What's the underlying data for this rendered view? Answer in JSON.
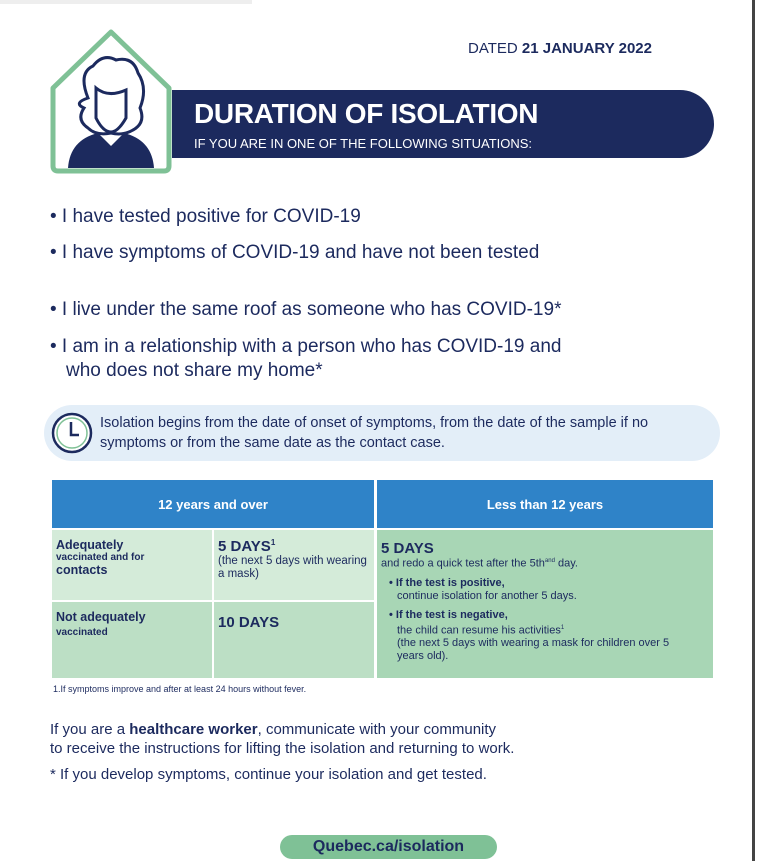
{
  "header": {
    "dated_prefix": "DATED",
    "dated_value": "21 JANUARY 2022",
    "title": "DURATION OF ISOLATION",
    "subtitle": "IF YOU ARE IN ONE OF THE FOLLOWING SITUATIONS:"
  },
  "bullets": [
    "• I have tested positive for COVID-19",
    "• I have symptoms of COVID-19 and have not been tested",
    "• I live under the same roof as someone who has COVID-19*",
    "• I am in a relationship with a person who has COVID-19 and",
    "who does not share my home*"
  ],
  "note": "Isolation begins from the date of onset of symptoms, from the date of the sample if no symptoms or from the same date as the contact case.",
  "table": {
    "headers": [
      "12 years and over",
      "Less than 12 years"
    ],
    "row1": {
      "label_a": "Adequately",
      "label_b": "vaccinated and for",
      "label_c": "contacts",
      "days": "5 DAYS",
      "sup": "1",
      "detail": "(the next 5 days with wearing a mask)"
    },
    "row2": {
      "label_a": "Not adequately",
      "label_b": "vaccinated",
      "days": "10 DAYS"
    },
    "right": {
      "days": "5 DAYS",
      "line": "and redo a quick test after the 5th",
      "sup": "and",
      "line_end": " day.",
      "pos_head": "• If the test is positive,",
      "pos_body": "continue isolation for another 5 days.",
      "neg_head": "• If the test is negative,",
      "neg_body": "the child can resume his activities",
      "neg_sup": "1",
      "neg_extra": "(the next 5 days with wearing a mask for children over 5 years old)."
    }
  },
  "footnote": "1.If symptoms improve and after at least 24 hours without fever.",
  "healthcare": {
    "pre": "If you are a ",
    "bold": "healthcare worker",
    "post": ", communicate with your community",
    "line2": "to receive the instructions for lifting the isolation and returning to work."
  },
  "star_note": "* If you develop symptoms, continue your isolation and get tested.",
  "link": "Quebec.ca/isolation",
  "colors": {
    "navy": "#1c2a5e",
    "green": "#7fc196",
    "blue": "#2f83c8"
  }
}
